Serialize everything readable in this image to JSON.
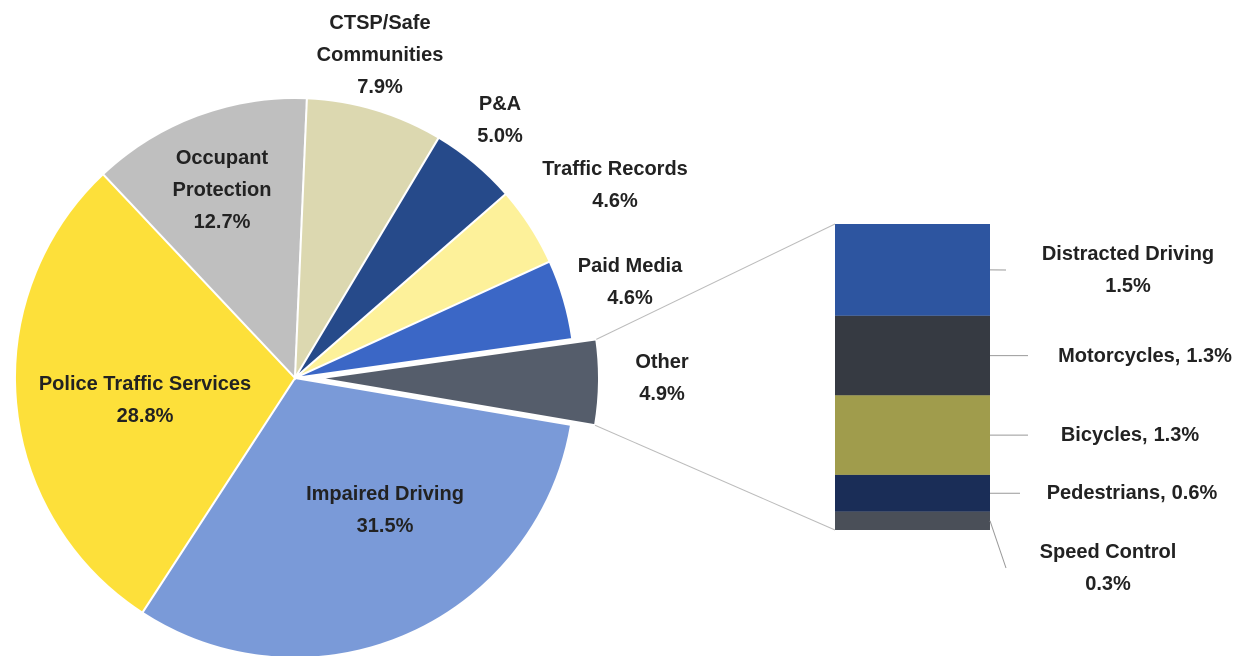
{
  "chart_data": [
    {
      "type": "pie",
      "categories": [
        "Other",
        "Impaired Driving",
        "Police Traffic Services",
        "Occupant Protection",
        "CTSP/Safe Communities",
        "P&A",
        "Traffic Records",
        "Paid Media"
      ],
      "values": [
        4.9,
        31.5,
        28.8,
        12.7,
        7.9,
        5.0,
        4.6,
        4.6
      ],
      "value_labels": [
        "4.9%",
        "31.5%",
        "28.8%",
        "12.7%",
        "7.9%",
        "5.0%",
        "4.6%",
        "4.6%"
      ],
      "colors": [
        "#555d6b",
        "#7a9ad8",
        "#fde03a",
        "#bfbfbf",
        "#dcd8b0",
        "#264a8a",
        "#fdf19a",
        "#3b67c6"
      ]
    },
    {
      "type": "bar",
      "stacked": true,
      "categories": [
        "Distracted Driving",
        "Motorcycles",
        "Bicycles",
        "Pedestrians",
        "Speed Control"
      ],
      "values": [
        1.5,
        1.3,
        1.3,
        0.6,
        0.3
      ],
      "value_labels": [
        "1.5%",
        "1.3%",
        "1.3%",
        "0.6%",
        "0.3%"
      ],
      "colors": [
        "#2d55a0",
        "#363a42",
        "#a09c4c",
        "#1a2d57",
        "#4a4f58"
      ]
    }
  ]
}
